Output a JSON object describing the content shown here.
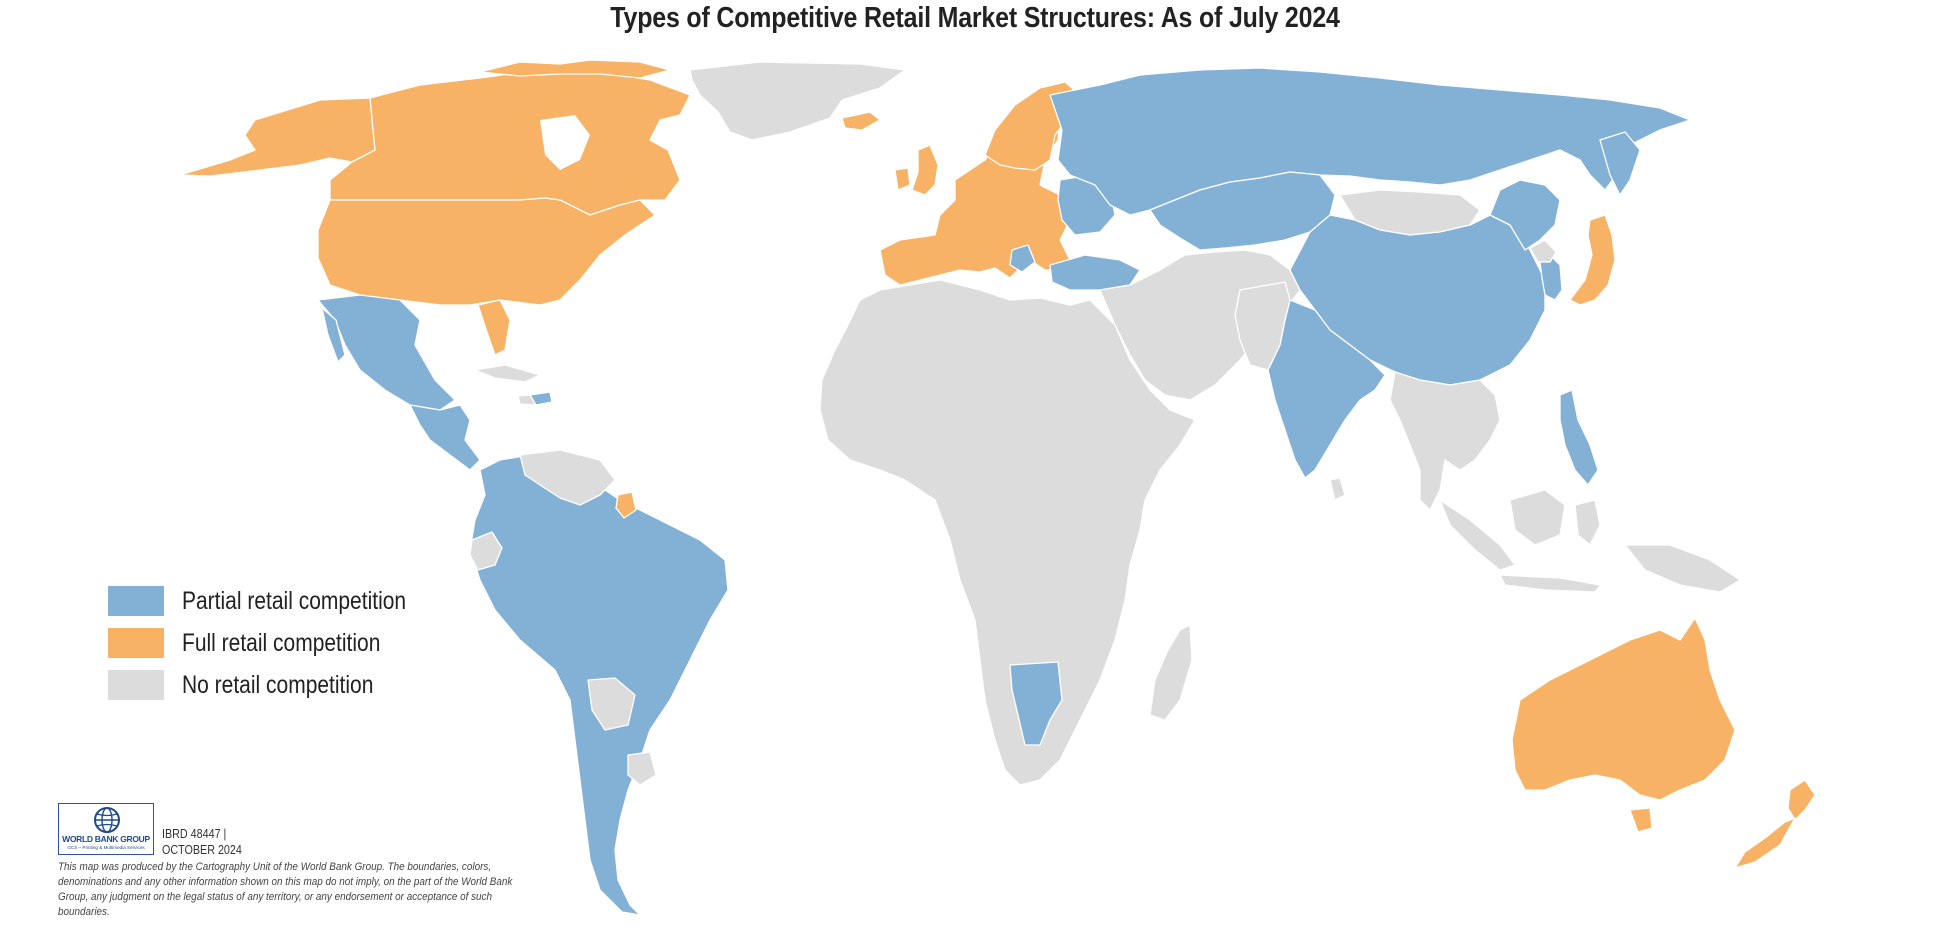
{
  "title": "Types of Competitive Retail Market Structures: As of July 2024",
  "colors": {
    "partial": "#82b1d5",
    "full": "#f8b265",
    "none": "#dcdcdc",
    "background": "#ffffff"
  },
  "legend": [
    {
      "key": "partial",
      "label": "Partial retail competition"
    },
    {
      "key": "full",
      "label": "Full retail competition"
    },
    {
      "key": "none",
      "label": "No retail competition"
    }
  ],
  "footer": {
    "logo_text": "WORLD BANK GROUP",
    "logo_sub": "GCS – Printing & Multimedia Services",
    "map_id": "IBRD 48447 |",
    "date": "OCTOBER 2024",
    "disclaimer": "This map was produced by the Cartography Unit of the World Bank Group. The boundaries, colors, denominations and any other information shown on this map do not imply, on the part of the World Bank Group, any judgment on the legal status of any territory, or any endorsement or acceptance of such boundaries."
  },
  "regions": [
    {
      "name": "Canada",
      "category": "full"
    },
    {
      "name": "United States",
      "category": "full"
    },
    {
      "name": "Alaska",
      "category": "full"
    },
    {
      "name": "Greenland",
      "category": "none"
    },
    {
      "name": "Iceland",
      "category": "full"
    },
    {
      "name": "Mexico",
      "category": "partial"
    },
    {
      "name": "Central America",
      "category": "partial"
    },
    {
      "name": "Caribbean",
      "category": "none"
    },
    {
      "name": "Dominican Republic",
      "category": "partial"
    },
    {
      "name": "Venezuela / Guyana",
      "category": "none"
    },
    {
      "name": "French Guiana",
      "category": "full"
    },
    {
      "name": "Colombia / Brazil / Peru / Bolivia / Argentina / Chile",
      "category": "partial"
    },
    {
      "name": "Ecuador",
      "category": "none"
    },
    {
      "name": "Paraguay",
      "category": "none"
    },
    {
      "name": "Uruguay",
      "category": "none"
    },
    {
      "name": "Europe",
      "category": "full"
    },
    {
      "name": "Russia",
      "category": "partial"
    },
    {
      "name": "Ukraine / Belarus",
      "category": "partial"
    },
    {
      "name": "Turkey",
      "category": "partial"
    },
    {
      "name": "Kazakhstan / Central Asia",
      "category": "partial"
    },
    {
      "name": "Middle East",
      "category": "none"
    },
    {
      "name": "Africa",
      "category": "none"
    },
    {
      "name": "Namibia",
      "category": "partial"
    },
    {
      "name": "Madagascar",
      "category": "none"
    },
    {
      "name": "Mongolia",
      "category": "none"
    },
    {
      "name": "China",
      "category": "partial"
    },
    {
      "name": "India",
      "category": "partial"
    },
    {
      "name": "South Korea",
      "category": "partial"
    },
    {
      "name": "Japan",
      "category": "full"
    },
    {
      "name": "Southeast Asia",
      "category": "none"
    },
    {
      "name": "Philippines",
      "category": "partial"
    },
    {
      "name": "Indonesia / Papua New Guinea",
      "category": "none"
    },
    {
      "name": "Australia",
      "category": "full"
    },
    {
      "name": "New Zealand",
      "category": "full"
    }
  ]
}
